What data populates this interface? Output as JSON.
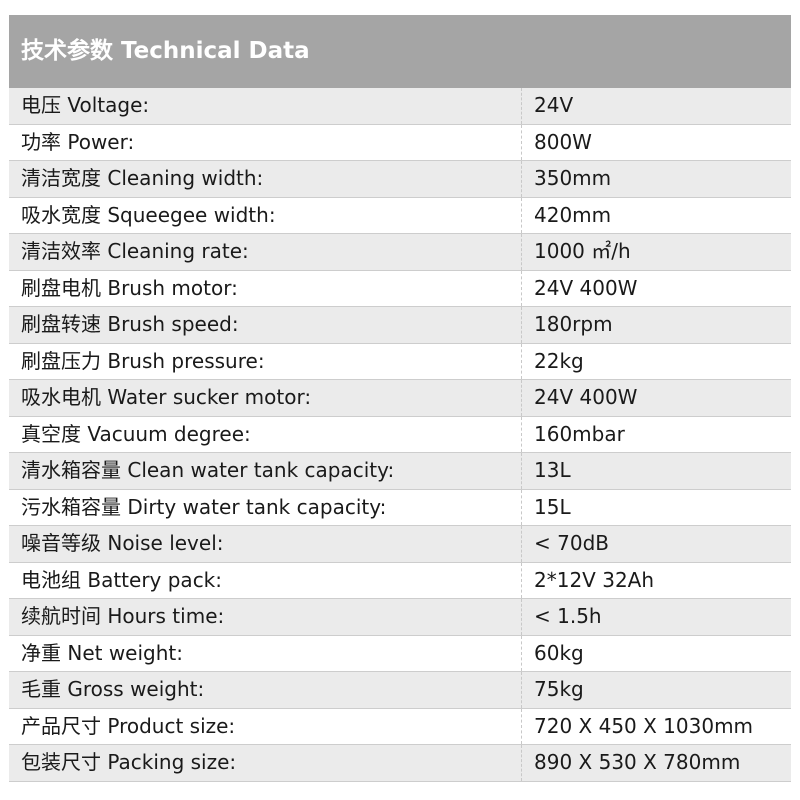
{
  "title": "技术参数 Technical Data",
  "rows": [
    {
      "label": "电压  Voltage:",
      "value": "24V"
    },
    {
      "label": "功率 Power:",
      "value": "800W"
    },
    {
      "label": "清洁宽度 Cleaning width:",
      "value": "350mm"
    },
    {
      "label": "吸水宽度 Squeegee width:",
      "value": "420mm"
    },
    {
      "label": "清洁效率 Cleaning rate:",
      "value": "1000 ㎡/h"
    },
    {
      "label": "刷盘电机 Brush motor:",
      "value": "24V 400W"
    },
    {
      "label": "刷盘转速 Brush speed:",
      "value": "180rpm"
    },
    {
      "label": "刷盘压力  Brush pressure:",
      "value": "22kg"
    },
    {
      "label": "吸水电机 Water sucker motor:",
      "value": "24V 400W"
    },
    {
      "label": "真空度  Vacuum degree:",
      "value": "160mbar"
    },
    {
      "label": "清水箱容量  Clean water tank capacity:",
      "value": "13L"
    },
    {
      "label": "污水箱容量  Dirty water tank capacity:",
      "value": "15L"
    },
    {
      "label": "噪音等级  Noise level:",
      "value": " < 70dB"
    },
    {
      "label": "电池组  Battery pack:",
      "value": "2*12V 32Ah"
    },
    {
      "label": "续航时间  Hours time:",
      "value": " < 1.5h"
    },
    {
      "label": "净重 Net weight:",
      "value": "60kg"
    },
    {
      "label": "毛重 Gross weight:",
      "value": "75kg"
    },
    {
      "label": "产品尺寸  Product size:",
      "value": "720 X 450 X 1030mm"
    },
    {
      "label": "包装尺寸  Packing size:",
      "value": "890 X 530 X 780mm"
    }
  ]
}
